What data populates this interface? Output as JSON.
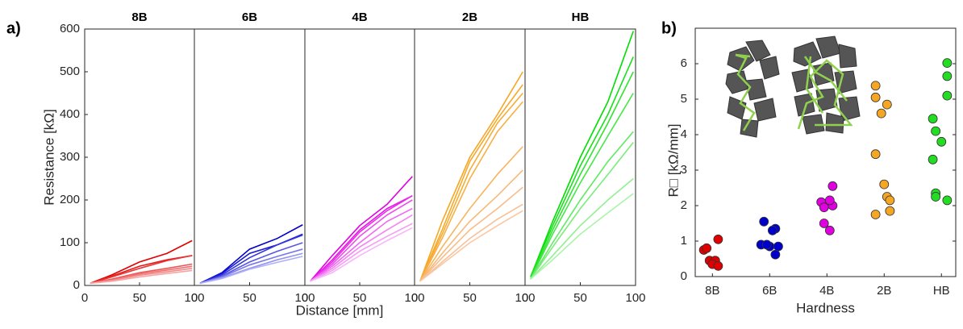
{
  "panels": [
    "a)",
    "b)"
  ],
  "chart_data": [
    {
      "type": "line",
      "title": "8B",
      "ylabel": "Resistance [kΩ]",
      "x": [
        5,
        25,
        50,
        75,
        98
      ],
      "xlim": [
        0,
        100
      ],
      "ylim": [
        0,
        600
      ],
      "xticks": [
        0,
        50,
        100
      ],
      "yticks": [
        0,
        100,
        200,
        300,
        400,
        500,
        600
      ],
      "series": [
        {
          "color": "#e00000",
          "values": [
            5,
            25,
            55,
            75,
            105
          ]
        },
        {
          "color": "#e41a1a",
          "values": [
            5,
            22,
            45,
            60,
            70
          ]
        },
        {
          "color": "#e83535",
          "values": [
            5,
            20,
            40,
            58,
            70
          ]
        },
        {
          "color": "#ec5555",
          "values": [
            5,
            15,
            30,
            40,
            50
          ]
        },
        {
          "color": "#f07070",
          "values": [
            5,
            13,
            27,
            36,
            45
          ]
        },
        {
          "color": "#f38a8a",
          "values": [
            5,
            12,
            24,
            32,
            40
          ]
        },
        {
          "color": "#f6a5a5",
          "values": [
            5,
            10,
            20,
            28,
            35
          ]
        }
      ]
    },
    {
      "type": "line",
      "title": "6B",
      "x": [
        5,
        25,
        50,
        75,
        98
      ],
      "xlim": [
        0,
        100
      ],
      "ylim": [
        0,
        600
      ],
      "xticks": [
        0,
        50,
        100
      ],
      "series": [
        {
          "color": "#0000cc",
          "values": [
            5,
            30,
            85,
            110,
            142
          ]
        },
        {
          "color": "#1a1ad4",
          "values": [
            5,
            28,
            75,
            95,
            120
          ]
        },
        {
          "color": "#3535dc",
          "values": [
            5,
            25,
            65,
            95,
            118
          ]
        },
        {
          "color": "#5858e4",
          "values": [
            5,
            22,
            55,
            80,
            100
          ]
        },
        {
          "color": "#7878ec",
          "values": [
            5,
            20,
            48,
            68,
            85
          ]
        },
        {
          "color": "#9494f2",
          "values": [
            5,
            18,
            40,
            60,
            75
          ]
        },
        {
          "color": "#b0b0f8",
          "values": [
            5,
            16,
            38,
            54,
            68
          ]
        }
      ]
    },
    {
      "type": "line",
      "title": "4B",
      "xlabel": "Distance [mm]",
      "x": [
        5,
        25,
        50,
        75,
        98
      ],
      "xlim": [
        0,
        100
      ],
      "ylim": [
        0,
        600
      ],
      "xticks": [
        0,
        50,
        100
      ],
      "series": [
        {
          "color": "#e000e0",
          "values": [
            10,
            70,
            140,
            190,
            255
          ]
        },
        {
          "color": "#e41ae4",
          "values": [
            10,
            60,
            130,
            180,
            210
          ]
        },
        {
          "color": "#e830e8",
          "values": [
            10,
            55,
            125,
            175,
            210
          ]
        },
        {
          "color": "#ec4cec",
          "values": [
            10,
            50,
            115,
            165,
            200
          ]
        },
        {
          "color": "#f068f0",
          "values": [
            10,
            45,
            100,
            150,
            180
          ]
        },
        {
          "color": "#f384f3",
          "values": [
            10,
            40,
            90,
            130,
            165
          ]
        },
        {
          "color": "#f59ef5",
          "values": [
            10,
            35,
            80,
            115,
            145
          ]
        },
        {
          "color": "#f8b6f8",
          "values": [
            10,
            30,
            70,
            105,
            135
          ]
        }
      ]
    },
    {
      "type": "line",
      "title": "2B",
      "x": [
        5,
        25,
        50,
        75,
        98
      ],
      "xlim": [
        0,
        100
      ],
      "ylim": [
        0,
        600
      ],
      "xticks": [
        0,
        50,
        100
      ],
      "series": [
        {
          "color": "#f5a623",
          "values": [
            10,
            150,
            300,
            400,
            500
          ]
        },
        {
          "color": "#f5aa2c",
          "values": [
            10,
            130,
            290,
            390,
            470
          ]
        },
        {
          "color": "#f6ad38",
          "values": [
            10,
            120,
            270,
            380,
            450
          ]
        },
        {
          "color": "#f6b046",
          "values": [
            10,
            110,
            250,
            360,
            430
          ]
        },
        {
          "color": "#f7b560",
          "values": [
            10,
            90,
            180,
            260,
            325
          ]
        },
        {
          "color": "#f8b878",
          "values": [
            10,
            75,
            150,
            210,
            270
          ]
        },
        {
          "color": "#f9bc88",
          "values": [
            10,
            65,
            130,
            180,
            230
          ]
        },
        {
          "color": "#f9c096",
          "values": [
            10,
            55,
            110,
            155,
            190
          ]
        },
        {
          "color": "#fbc6a4",
          "values": [
            10,
            50,
            100,
            140,
            175
          ]
        }
      ]
    },
    {
      "type": "line",
      "title": "HB",
      "x": [
        5,
        25,
        50,
        75,
        98
      ],
      "xlim": [
        0,
        100
      ],
      "ylim": [
        0,
        600
      ],
      "xticks": [
        0,
        50,
        100
      ],
      "series": [
        {
          "color": "#00dd00",
          "values": [
            20,
            150,
            300,
            430,
            595
          ]
        },
        {
          "color": "#1ae01a",
          "values": [
            20,
            140,
            280,
            400,
            535
          ]
        },
        {
          "color": "#30e330",
          "values": [
            15,
            130,
            260,
            380,
            500
          ]
        },
        {
          "color": "#48e648",
          "values": [
            15,
            120,
            240,
            350,
            450
          ]
        },
        {
          "color": "#62ea62",
          "values": [
            15,
            100,
            200,
            290,
            360
          ]
        },
        {
          "color": "#7aed7a",
          "values": [
            15,
            90,
            180,
            260,
            335
          ]
        },
        {
          "color": "#92f092",
          "values": [
            15,
            70,
            140,
            200,
            250
          ]
        },
        {
          "color": "#aaf4aa",
          "values": [
            15,
            60,
            120,
            170,
            215
          ]
        }
      ]
    },
    {
      "type": "scatter",
      "xlabel": "Hardness",
      "ylabel": "R□ [kΩ/mm]",
      "xlim": [
        0.7,
        5.25
      ],
      "ylim": [
        0,
        7
      ],
      "xticks": [
        {
          "value": 1,
          "label": "8B"
        },
        {
          "value": 2,
          "label": "6B"
        },
        {
          "value": 3,
          "label": "4B"
        },
        {
          "value": 4,
          "label": "2B"
        },
        {
          "value": 5,
          "label": "HB"
        }
      ],
      "yticks": [
        0,
        1,
        2,
        3,
        4,
        5,
        6
      ],
      "series": [
        {
          "color": "#e00000",
          "x": [
            0.85,
            0.9,
            1.1,
            0.95,
            1.05,
            1.0,
            1.1
          ],
          "values": [
            0.75,
            0.8,
            1.05,
            0.45,
            0.45,
            0.35,
            0.3
          ]
        },
        {
          "color": "#0000cc",
          "x": [
            1.9,
            2.1,
            2.05,
            1.85,
            2.0,
            2.15,
            1.95,
            2.1
          ],
          "values": [
            1.55,
            1.35,
            1.3,
            0.9,
            0.85,
            0.85,
            0.9,
            0.62
          ]
        },
        {
          "color": "#e000e0",
          "x": [
            3.1,
            2.9,
            3.1,
            2.95,
            3.05,
            2.95,
            3.05
          ],
          "values": [
            2.55,
            2.1,
            2.0,
            1.95,
            2.15,
            1.5,
            1.3
          ]
        },
        {
          "color": "#f5a623",
          "x": [
            3.85,
            3.85,
            4.05,
            3.95,
            3.85,
            4.0,
            4.05,
            4.1,
            3.85,
            4.1
          ],
          "values": [
            5.38,
            5.05,
            4.85,
            4.6,
            3.45,
            2.6,
            2.25,
            2.15,
            1.75,
            1.85
          ]
        },
        {
          "color": "#22dd22",
          "x": [
            5.1,
            5.1,
            5.1,
            4.85,
            4.9,
            5.0,
            4.85,
            4.9,
            4.9,
            5.1
          ],
          "values": [
            6.02,
            5.65,
            5.1,
            4.45,
            4.1,
            3.8,
            3.3,
            2.35,
            2.25,
            2.15
          ]
        }
      ]
    }
  ]
}
